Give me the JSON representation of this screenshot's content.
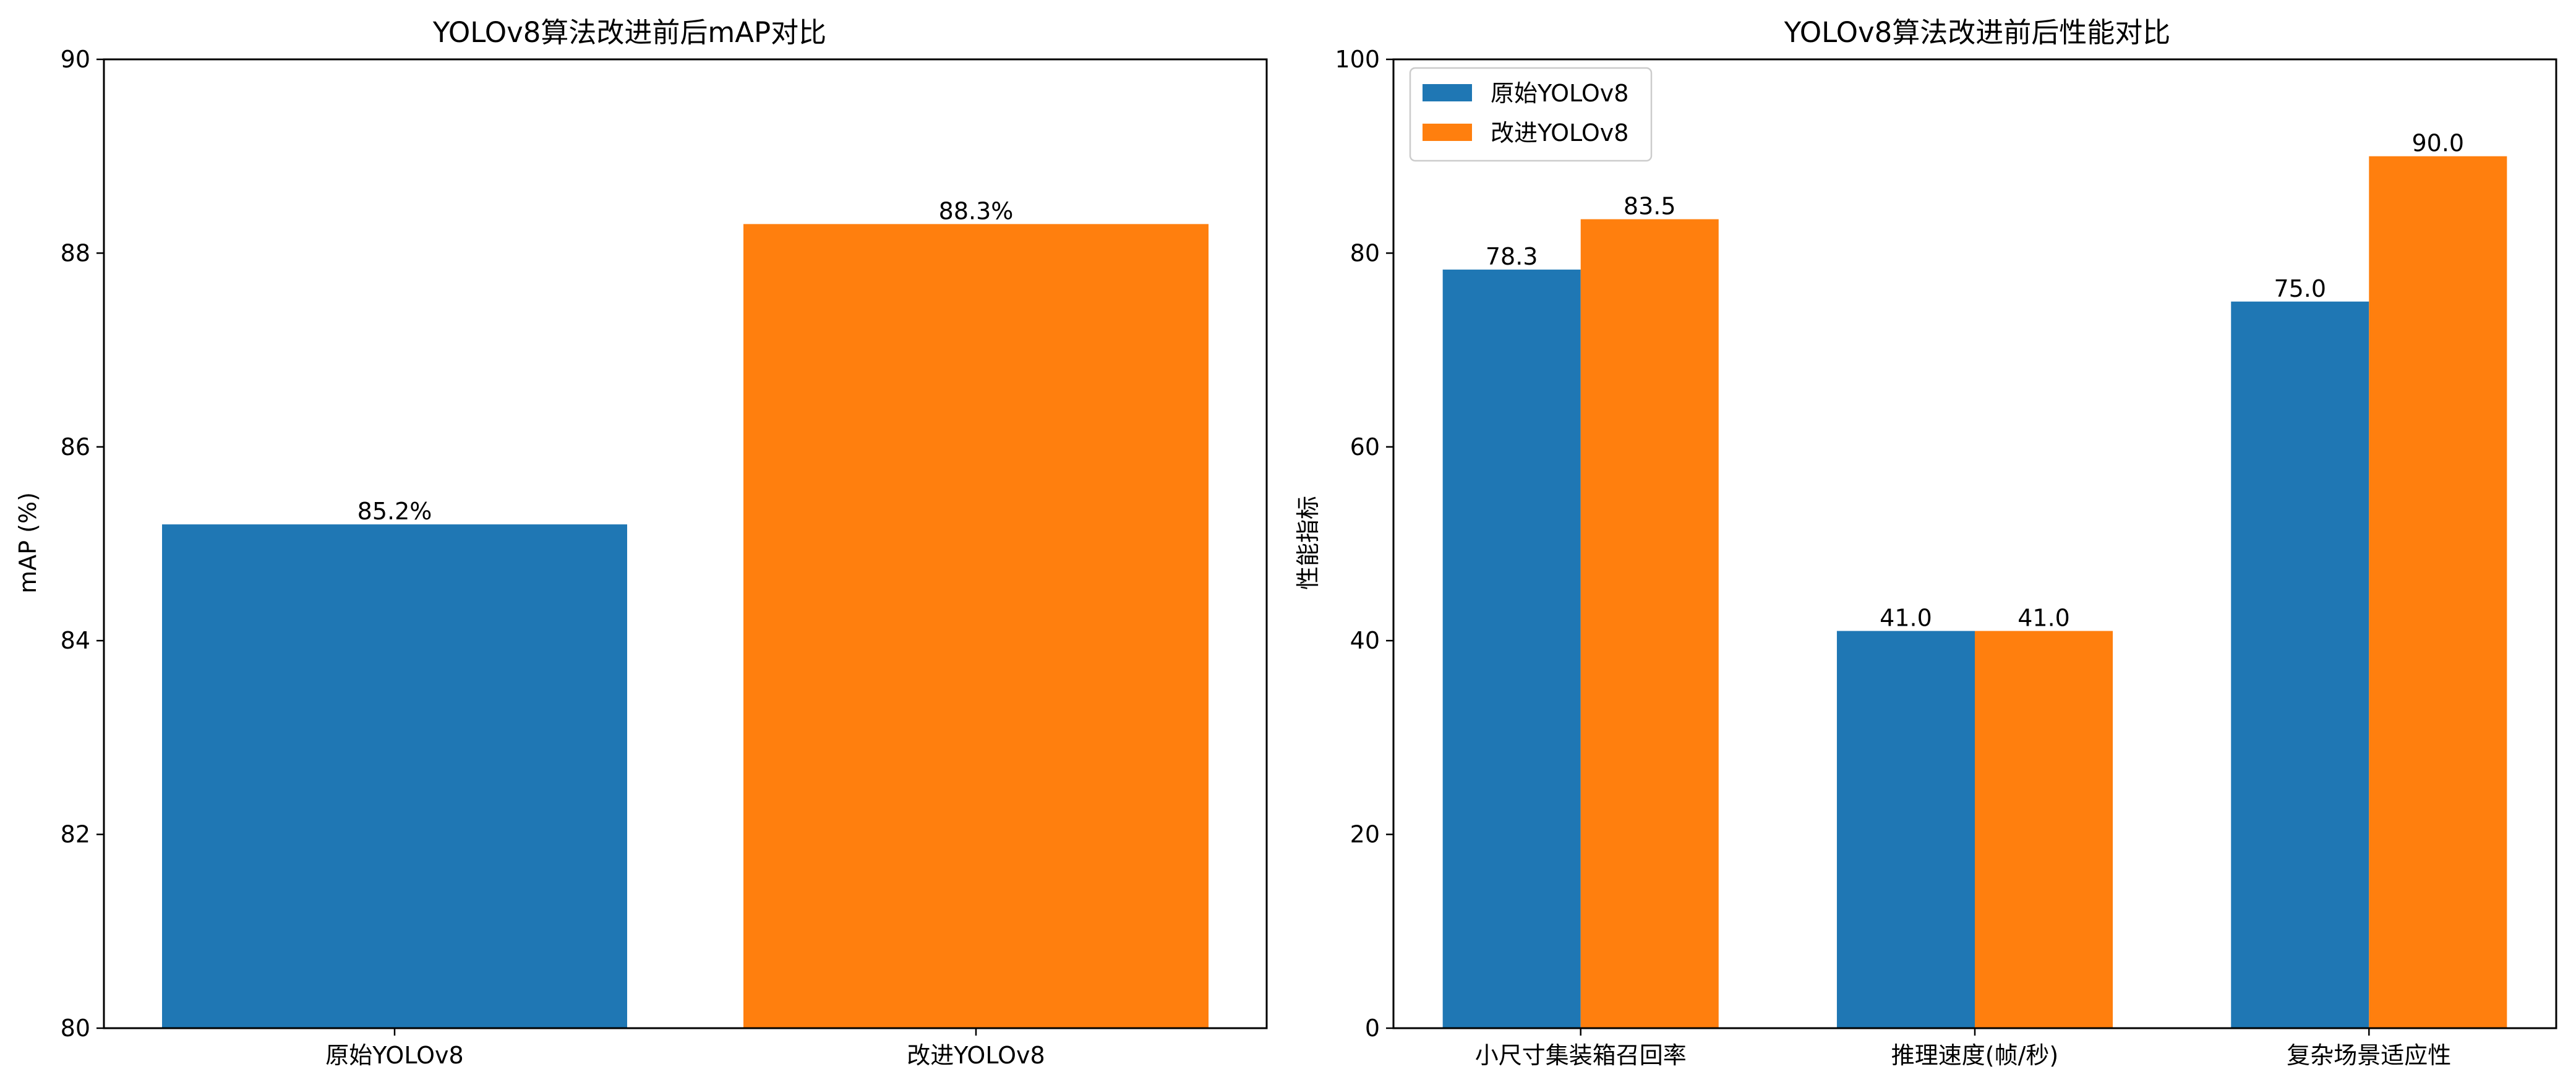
{
  "chart_data": [
    {
      "type": "bar",
      "title": "YOLOv8算法改进前后mAP对比",
      "xlabel": "",
      "ylabel": "mAP (%)",
      "ylim": [
        80,
        90
      ],
      "yticks": [
        "80",
        "82",
        "84",
        "86",
        "88",
        "90"
      ],
      "categories": [
        "原始YOLOv8",
        "改进YOLOv8"
      ],
      "values": [
        85.2,
        88.3
      ],
      "value_labels": [
        "85.2%",
        "88.3%"
      ],
      "colors": [
        "#1f77b4",
        "#ff7f0e"
      ]
    },
    {
      "type": "bar",
      "title": "YOLOv8算法改进前后性能对比",
      "xlabel": "",
      "ylabel": "性能指标",
      "ylim": [
        0,
        100
      ],
      "yticks": [
        "0",
        "20",
        "40",
        "60",
        "80",
        "100"
      ],
      "categories": [
        "小尺寸集装箱召回率",
        "推理速度(帧/秒)",
        "复杂场景适应性"
      ],
      "legend_position": "top-left",
      "series": [
        {
          "name": "原始YOLOv8",
          "color": "#1f77b4",
          "values": [
            78.3,
            41.0,
            75.0
          ],
          "value_labels": [
            "78.3",
            "41.0",
            "75.0"
          ]
        },
        {
          "name": "改进YOLOv8",
          "color": "#ff7f0e",
          "values": [
            83.5,
            41.0,
            90.0
          ],
          "value_labels": [
            "83.5",
            "41.0",
            "90.0"
          ]
        }
      ]
    }
  ]
}
